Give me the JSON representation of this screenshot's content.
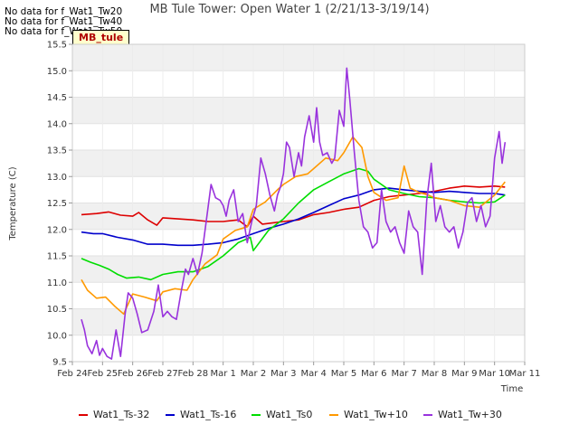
{
  "header": {
    "nodata_lines": [
      "No data for f_Wat1_Tw20",
      "No data for f_Wat1_Tw40",
      "No data for f_Wat1_Tw50"
    ],
    "site_label": "MB_tule"
  },
  "chart_data": {
    "type": "line",
    "title": "MB Tule Tower: Open Water 1 (2/21/13-3/19/14)",
    "xlabel": "Time",
    "ylabel": "Temperature (C)",
    "xlim": [
      0,
      15
    ],
    "ylim": [
      9.5,
      15.5
    ],
    "xticks": [
      {
        "value": 0,
        "label": "Feb 24"
      },
      {
        "value": 1,
        "label": "Feb 25"
      },
      {
        "value": 2,
        "label": "Feb 26"
      },
      {
        "value": 3,
        "label": "Feb 27"
      },
      {
        "value": 4,
        "label": "Feb 28"
      },
      {
        "value": 5,
        "label": "Mar 1"
      },
      {
        "value": 6,
        "label": "Mar 2"
      },
      {
        "value": 7,
        "label": "Mar 3"
      },
      {
        "value": 8,
        "label": "Mar 4"
      },
      {
        "value": 9,
        "label": "Mar 5"
      },
      {
        "value": 10,
        "label": "Mar 6"
      },
      {
        "value": 11,
        "label": "Mar 7"
      },
      {
        "value": 12,
        "label": "Mar 8"
      },
      {
        "value": 13,
        "label": "Mar 9"
      },
      {
        "value": 14,
        "label": "Mar 10"
      },
      {
        "value": 15,
        "label": "Mar 11"
      }
    ],
    "yticks": [
      {
        "value": 9.5,
        "label": "9.5"
      },
      {
        "value": 10.0,
        "label": "10.0"
      },
      {
        "value": 10.5,
        "label": "10.5"
      },
      {
        "value": 11.0,
        "label": "11.0"
      },
      {
        "value": 11.5,
        "label": "11.5"
      },
      {
        "value": 12.0,
        "label": "12.0"
      },
      {
        "value": 12.5,
        "label": "12.5"
      },
      {
        "value": 13.0,
        "label": "13.0"
      },
      {
        "value": 13.5,
        "label": "13.5"
      },
      {
        "value": 14.0,
        "label": "14.0"
      },
      {
        "value": 14.5,
        "label": "14.5"
      },
      {
        "value": 15.0,
        "label": "15.0"
      },
      {
        "value": 15.5,
        "label": "15.5"
      }
    ],
    "series": [
      {
        "name": "Wat1_Ts-32",
        "color": "#dd0000",
        "x": [
          0.3,
          0.8,
          1.2,
          1.6,
          2.0,
          2.2,
          2.5,
          2.8,
          3.0,
          3.5,
          4.0,
          4.5,
          5.0,
          5.5,
          5.8,
          6.0,
          6.3,
          6.6,
          7.0,
          7.5,
          8.0,
          8.5,
          9.0,
          9.5,
          10.0,
          10.5,
          11.0,
          11.5,
          12.0,
          12.5,
          13.0,
          13.5,
          14.0,
          14.35
        ],
        "y": [
          12.28,
          12.3,
          12.33,
          12.27,
          12.25,
          12.32,
          12.18,
          12.08,
          12.22,
          12.2,
          12.18,
          12.15,
          12.15,
          12.18,
          12.05,
          12.25,
          12.1,
          12.12,
          12.15,
          12.18,
          12.28,
          12.32,
          12.38,
          12.42,
          12.55,
          12.62,
          12.65,
          12.68,
          12.72,
          12.78,
          12.82,
          12.8,
          12.82,
          12.8
        ]
      },
      {
        "name": "Wat1_Ts-16",
        "color": "#0000cc",
        "x": [
          0.3,
          0.7,
          1.0,
          1.5,
          2.0,
          2.5,
          3.0,
          3.5,
          4.0,
          4.5,
          5.0,
          5.5,
          6.0,
          6.5,
          7.0,
          7.5,
          8.0,
          8.5,
          9.0,
          9.5,
          10.0,
          10.5,
          11.0,
          11.5,
          12.0,
          12.5,
          13.0,
          13.5,
          14.0,
          14.35
        ],
        "y": [
          11.95,
          11.92,
          11.92,
          11.85,
          11.8,
          11.72,
          11.72,
          11.7,
          11.7,
          11.72,
          11.75,
          11.82,
          11.92,
          12.02,
          12.1,
          12.2,
          12.32,
          12.45,
          12.58,
          12.65,
          12.75,
          12.78,
          12.75,
          12.72,
          12.7,
          12.72,
          12.7,
          12.68,
          12.68,
          12.65
        ]
      },
      {
        "name": "Wat1_Ts0",
        "color": "#00dd00",
        "x": [
          0.3,
          0.6,
          0.9,
          1.2,
          1.5,
          1.8,
          2.2,
          2.6,
          3.0,
          3.5,
          4.0,
          4.5,
          5.0,
          5.5,
          5.9,
          6.0,
          6.5,
          7.0,
          7.5,
          8.0,
          8.5,
          9.0,
          9.5,
          9.8,
          10.0,
          10.5,
          11.0,
          11.5,
          12.0,
          12.5,
          13.0,
          13.5,
          14.0,
          14.35
        ],
        "y": [
          11.45,
          11.38,
          11.32,
          11.25,
          11.15,
          11.08,
          11.1,
          11.05,
          11.15,
          11.2,
          11.2,
          11.3,
          11.5,
          11.75,
          11.85,
          11.6,
          11.98,
          12.2,
          12.5,
          12.75,
          12.9,
          13.05,
          13.15,
          13.1,
          12.95,
          12.75,
          12.68,
          12.62,
          12.6,
          12.55,
          12.52,
          12.5,
          12.52,
          12.65
        ]
      },
      {
        "name": "Wat1_Tw+10",
        "color": "#ff9900",
        "x": [
          0.3,
          0.5,
          0.8,
          1.1,
          1.4,
          1.7,
          2.0,
          2.4,
          2.8,
          3.0,
          3.4,
          3.8,
          4.0,
          4.4,
          4.8,
          5.0,
          5.4,
          5.8,
          6.0,
          6.4,
          6.8,
          7.0,
          7.4,
          7.8,
          8.0,
          8.4,
          8.8,
          9.0,
          9.3,
          9.6,
          9.8,
          10.0,
          10.4,
          10.8,
          11.0,
          11.2,
          11.5,
          11.8,
          12.0,
          12.5,
          13.0,
          13.5,
          14.0,
          14.35
        ],
        "y": [
          11.05,
          10.85,
          10.7,
          10.72,
          10.55,
          10.4,
          10.78,
          10.72,
          10.65,
          10.82,
          10.88,
          10.85,
          11.05,
          11.35,
          11.52,
          11.82,
          11.98,
          12.05,
          12.38,
          12.52,
          12.75,
          12.85,
          13.0,
          13.05,
          13.15,
          13.35,
          13.3,
          13.45,
          13.75,
          13.55,
          13.0,
          12.7,
          12.55,
          12.6,
          13.2,
          12.78,
          12.7,
          12.65,
          12.6,
          12.55,
          12.45,
          12.42,
          12.65,
          12.9
        ]
      },
      {
        "name": "Wat1_Tw+30",
        "color": "#9933dd",
        "x": [
          0.3,
          0.4,
          0.5,
          0.65,
          0.8,
          0.9,
          1.0,
          1.15,
          1.3,
          1.45,
          1.6,
          1.75,
          1.85,
          2.0,
          2.15,
          2.3,
          2.5,
          2.7,
          2.85,
          3.0,
          3.15,
          3.3,
          3.45,
          3.6,
          3.75,
          3.85,
          4.0,
          4.15,
          4.3,
          4.45,
          4.6,
          4.75,
          4.9,
          5.0,
          5.1,
          5.2,
          5.35,
          5.5,
          5.65,
          5.8,
          5.95,
          6.1,
          6.25,
          6.4,
          6.55,
          6.7,
          6.8,
          6.9,
          7.0,
          7.1,
          7.2,
          7.35,
          7.5,
          7.6,
          7.7,
          7.85,
          8.0,
          8.1,
          8.2,
          8.3,
          8.45,
          8.6,
          8.7,
          8.85,
          9.0,
          9.05,
          9.1,
          9.2,
          9.35,
          9.5,
          9.65,
          9.8,
          9.95,
          10.1,
          10.25,
          10.4,
          10.55,
          10.7,
          10.85,
          11.0,
          11.15,
          11.3,
          11.45,
          11.6,
          11.75,
          11.9,
          12.05,
          12.2,
          12.35,
          12.5,
          12.65,
          12.8,
          12.95,
          13.1,
          13.25,
          13.4,
          13.55,
          13.7,
          13.85,
          14.0,
          14.15,
          14.25,
          14.35
        ],
        "y": [
          10.3,
          10.1,
          9.8,
          9.65,
          9.9,
          9.62,
          9.75,
          9.6,
          9.55,
          10.1,
          9.6,
          10.4,
          10.8,
          10.7,
          10.4,
          10.05,
          10.1,
          10.45,
          10.95,
          10.35,
          10.45,
          10.35,
          10.3,
          10.8,
          11.25,
          11.15,
          11.45,
          11.15,
          11.55,
          12.2,
          12.85,
          12.6,
          12.55,
          12.45,
          12.25,
          12.55,
          12.75,
          12.15,
          12.3,
          11.75,
          12.15,
          12.45,
          13.35,
          13.05,
          12.65,
          12.35,
          12.65,
          12.8,
          13.05,
          13.65,
          13.55,
          13.0,
          13.45,
          13.2,
          13.75,
          14.15,
          13.65,
          14.3,
          13.65,
          13.4,
          13.45,
          13.25,
          13.35,
          14.25,
          13.95,
          14.55,
          15.05,
          14.45,
          13.45,
          12.55,
          12.05,
          11.95,
          11.65,
          11.75,
          12.75,
          12.15,
          11.95,
          12.05,
          11.75,
          11.55,
          12.35,
          12.05,
          11.95,
          11.15,
          12.55,
          13.25,
          12.15,
          12.45,
          12.05,
          11.95,
          12.05,
          11.65,
          11.95,
          12.5,
          12.6,
          12.15,
          12.45,
          12.05,
          12.25,
          13.35,
          13.85,
          13.25,
          13.65
        ]
      }
    ],
    "legend_position": "bottom",
    "grid": true
  }
}
